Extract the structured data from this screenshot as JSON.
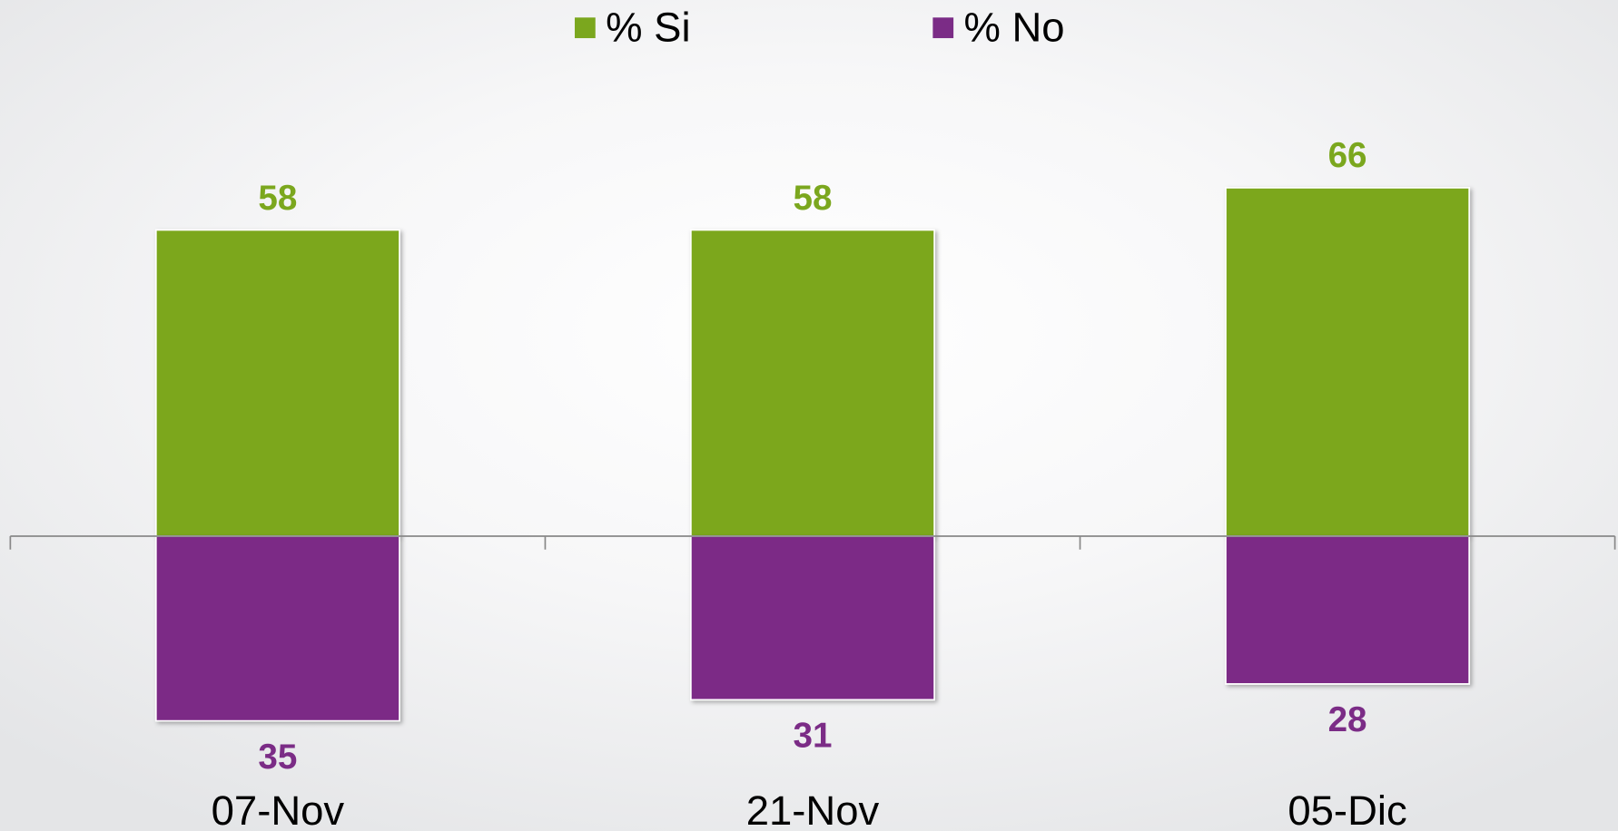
{
  "chart_data": {
    "type": "bar",
    "categories": [
      "07-Nov",
      "21-Nov",
      "05-Dic"
    ],
    "series": [
      {
        "name": "% Si",
        "color": "#7ba71e",
        "values": [
          58,
          58,
          66
        ]
      },
      {
        "name": "% No",
        "color": "#7b2c86",
        "values": [
          -35,
          -31,
          -28
        ],
        "value_labels": [
          "35",
          "31",
          "28"
        ]
      }
    ],
    "legend": "top"
  }
}
